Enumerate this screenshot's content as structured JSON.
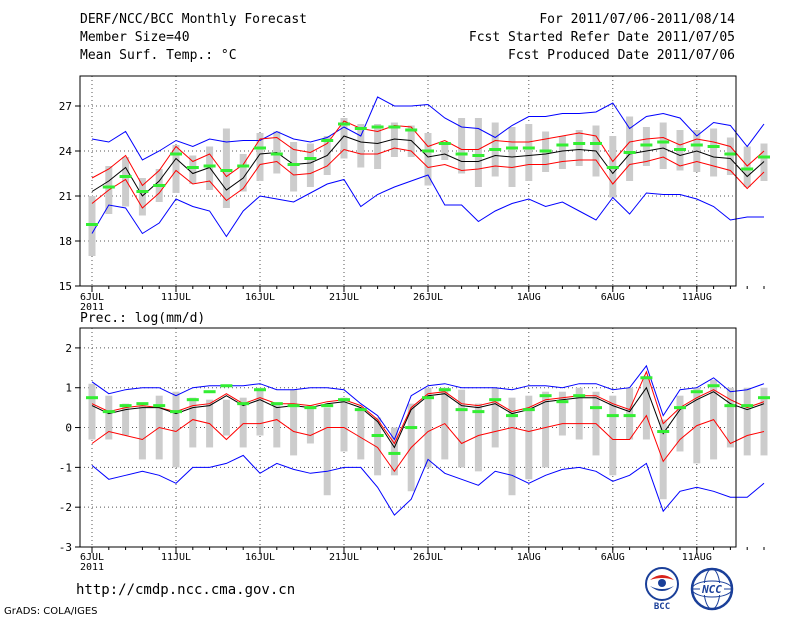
{
  "header": {
    "title": "DERF/NCC/BCC Monthly Forecast",
    "member_size": "Member Size=40",
    "variable": "Mean Surf. Temp.: °C",
    "forecast_range": "For 2011/07/06-2011/08/14",
    "fcst_started": "Fcst Started Refer Date 2011/07/05",
    "fcst_produced": "Fcst Produced Date 2011/07/06"
  },
  "footer": {
    "url": "http://cmdp.ncc.cma.gov.cn",
    "grads": "GrADS: COLA/IGES",
    "logo_bcc": "BCC",
    "logo_ncc": "NCC"
  },
  "colors": {
    "envelope": "#0000ff",
    "stddev": "#ff0000",
    "mean": "#000000",
    "box": "#cccccc",
    "median": "#33ee33",
    "grid": "#555555"
  },
  "chart_data": [
    {
      "type": "line",
      "title": "Mean Surf. Temp.: °C",
      "xlabel": "",
      "ylabel": "",
      "ylim": [
        15,
        29
      ],
      "yticks": [
        15,
        18,
        21,
        24,
        27
      ],
      "grid": "dotted",
      "day_start": 6,
      "xtick_days": [
        0,
        5,
        10,
        15,
        20,
        26,
        31,
        36
      ],
      "xtick_labels": [
        "6JUL",
        "11JUL",
        "16JUL",
        "21JUL",
        "26JUL",
        "1AUG",
        "6AUG",
        "11AUG"
      ],
      "year_label": "2011",
      "series": [
        {
          "name": "max",
          "values": [
            24.8,
            24.6,
            25.3,
            23.4,
            24.0,
            24.7,
            24.3,
            24.8,
            24.6,
            24.7,
            24.7,
            25.3,
            24.8,
            24.6,
            24.9,
            25.6,
            25.0,
            27.6,
            27.0,
            27.0,
            27.1,
            26.2,
            25.6,
            25.5,
            24.9,
            25.7,
            26.3,
            26.3,
            26.5,
            26.5,
            26.6,
            27.2,
            25.5,
            26.3,
            26.5,
            26.2,
            25.0,
            25.9,
            25.7,
            24.3,
            25.8
          ]
        },
        {
          "name": "mean_plus_sd",
          "values": [
            22.2,
            22.8,
            23.7,
            21.7,
            22.7,
            24.3,
            23.3,
            23.8,
            22.3,
            23.1,
            24.8,
            24.9,
            24.1,
            23.9,
            24.5,
            26.0,
            25.5,
            25.3,
            25.7,
            25.6,
            24.3,
            24.7,
            24.1,
            24.1,
            24.7,
            24.6,
            24.6,
            24.8,
            25.0,
            25.2,
            25.0,
            23.3,
            24.6,
            24.8,
            24.9,
            24.4,
            24.8,
            24.6,
            24.3,
            23.0,
            24.0
          ]
        },
        {
          "name": "mean",
          "values": [
            21.3,
            22.0,
            22.9,
            21.0,
            22.0,
            23.5,
            22.5,
            22.9,
            21.4,
            22.2,
            23.8,
            23.9,
            23.1,
            23.2,
            23.7,
            25.0,
            24.6,
            24.5,
            24.8,
            24.7,
            23.6,
            23.8,
            23.3,
            23.3,
            23.7,
            23.6,
            23.7,
            23.8,
            24.0,
            24.1,
            24.0,
            22.5,
            23.8,
            24.0,
            24.2,
            23.7,
            24.0,
            23.6,
            23.5,
            22.3,
            23.3
          ]
        },
        {
          "name": "mean_minus_sd",
          "values": [
            20.5,
            21.4,
            22.1,
            20.2,
            21.2,
            22.7,
            21.8,
            22.0,
            20.7,
            21.5,
            23.1,
            23.3,
            22.4,
            22.5,
            23.0,
            24.1,
            23.8,
            23.8,
            24.2,
            24.0,
            22.9,
            23.1,
            22.7,
            22.8,
            23.0,
            22.9,
            23.1,
            23.1,
            23.3,
            23.4,
            23.4,
            21.8,
            23.1,
            23.3,
            23.6,
            23.0,
            23.3,
            23.0,
            22.7,
            21.5,
            22.6
          ]
        },
        {
          "name": "min",
          "values": [
            18.5,
            20.4,
            20.2,
            18.5,
            19.2,
            20.8,
            20.3,
            20.0,
            18.3,
            20.0,
            21.0,
            20.8,
            20.6,
            21.2,
            21.8,
            22.1,
            20.3,
            21.1,
            21.6,
            22.0,
            22.4,
            20.4,
            20.4,
            19.3,
            20.0,
            20.5,
            20.8,
            20.3,
            20.6,
            20.0,
            19.4,
            20.9,
            19.8,
            21.2,
            21.1,
            21.1,
            20.8,
            20.3,
            19.4,
            19.6,
            19.6
          ]
        },
        {
          "name": "box_upper",
          "values": [
            21.0,
            23.0,
            23.6,
            22.2,
            22.8,
            24.4,
            23.7,
            24.3,
            25.5,
            23.8,
            25.2,
            25.3,
            24.6,
            24.5,
            25.0,
            26.2,
            25.8,
            25.8,
            25.9,
            25.7,
            25.2,
            24.6,
            26.2,
            26.2,
            25.9,
            25.6,
            25.8,
            25.3,
            25.0,
            25.4,
            25.7,
            25.0,
            26.3,
            25.6,
            25.9,
            25.4,
            25.4,
            25.5,
            24.9,
            24.3,
            24.5
          ]
        },
        {
          "name": "box_lower",
          "values": [
            17.0,
            19.8,
            20.3,
            19.7,
            20.6,
            21.2,
            21.8,
            21.4,
            20.2,
            21.3,
            22.0,
            22.5,
            21.3,
            21.6,
            22.4,
            23.5,
            22.9,
            22.8,
            23.6,
            23.6,
            21.7,
            23.4,
            22.5,
            21.6,
            22.3,
            21.6,
            22.0,
            22.6,
            22.8,
            23.0,
            22.3,
            20.9,
            22.0,
            23.0,
            22.8,
            22.7,
            22.6,
            22.3,
            22.4,
            21.6,
            22.0
          ]
        },
        {
          "name": "median",
          "values": [
            19.1,
            21.6,
            22.3,
            21.3,
            21.7,
            23.8,
            22.9,
            23.0,
            22.7,
            23.0,
            24.2,
            23.8,
            23.1,
            23.5,
            24.7,
            25.8,
            25.5,
            25.6,
            25.6,
            25.4,
            24.0,
            24.5,
            23.8,
            23.7,
            24.1,
            24.2,
            24.2,
            24.0,
            24.4,
            24.5,
            24.5,
            22.9,
            23.9,
            24.4,
            24.6,
            24.1,
            24.4,
            24.3,
            23.8,
            22.8,
            23.6
          ]
        }
      ]
    },
    {
      "type": "line",
      "title": "Prec.: log(mm/d)",
      "xlabel": "",
      "ylabel": "",
      "ylim": [
        -3,
        2.5
      ],
      "yticks": [
        -3,
        -2,
        -1,
        0,
        1,
        2
      ],
      "grid": "dotted",
      "day_start": 6,
      "xtick_days": [
        0,
        5,
        10,
        15,
        20,
        26,
        31,
        36
      ],
      "xtick_labels": [
        "6JUL",
        "11JUL",
        "16JUL",
        "21JUL",
        "26JUL",
        "1AUG",
        "6AUG",
        "11AUG"
      ],
      "year_label": "2011",
      "series": [
        {
          "name": "max",
          "values": [
            1.15,
            0.85,
            0.95,
            1.0,
            1.0,
            0.8,
            1.0,
            1.05,
            1.05,
            1.05,
            1.1,
            0.95,
            0.95,
            1.0,
            1.0,
            0.95,
            0.6,
            0.3,
            -0.3,
            0.8,
            1.05,
            1.1,
            1.0,
            1.0,
            1.0,
            0.95,
            1.05,
            1.05,
            1.0,
            1.1,
            1.1,
            0.95,
            1.0,
            1.55,
            0.3,
            0.95,
            1.0,
            1.25,
            0.9,
            0.95,
            1.1
          ]
        },
        {
          "name": "mean_plus_sd",
          "values": [
            0.6,
            0.4,
            0.5,
            0.55,
            0.5,
            0.4,
            0.55,
            0.6,
            0.85,
            0.6,
            0.75,
            0.6,
            0.6,
            0.55,
            0.65,
            0.7,
            0.55,
            0.2,
            -0.4,
            0.5,
            0.85,
            0.9,
            0.6,
            0.55,
            0.65,
            0.4,
            0.5,
            0.7,
            0.75,
            0.8,
            0.8,
            0.6,
            0.45,
            1.4,
            0.1,
            0.5,
            0.75,
            0.95,
            0.7,
            0.5,
            0.65
          ]
        },
        {
          "name": "mean",
          "values": [
            0.55,
            0.35,
            0.45,
            0.5,
            0.5,
            0.35,
            0.5,
            0.55,
            0.8,
            0.55,
            0.7,
            0.5,
            0.55,
            0.5,
            0.6,
            0.65,
            0.5,
            0.15,
            -0.5,
            0.45,
            0.8,
            0.85,
            0.55,
            0.5,
            0.6,
            0.35,
            0.45,
            0.65,
            0.7,
            0.75,
            0.75,
            0.55,
            0.4,
            1.0,
            -0.15,
            0.45,
            0.7,
            0.9,
            0.6,
            0.45,
            0.6
          ]
        },
        {
          "name": "mean_minus_sd",
          "values": [
            -0.4,
            -0.1,
            -0.2,
            -0.3,
            0.0,
            -0.1,
            0.2,
            0.1,
            -0.3,
            0.1,
            0.1,
            0.2,
            -0.1,
            -0.2,
            0.0,
            0.0,
            -0.25,
            -0.5,
            -1.1,
            -0.5,
            -0.1,
            0.1,
            -0.4,
            -0.2,
            -0.1,
            0.0,
            -0.1,
            0.0,
            0.1,
            0.1,
            0.1,
            -0.3,
            -0.3,
            0.3,
            -0.85,
            -0.3,
            0.05,
            0.2,
            -0.4,
            -0.2,
            -0.1
          ]
        },
        {
          "name": "min",
          "values": [
            -0.95,
            -1.3,
            -1.2,
            -1.1,
            -1.2,
            -1.4,
            -1.0,
            -1.0,
            -0.9,
            -0.7,
            -1.15,
            -0.9,
            -1.05,
            -1.15,
            -1.1,
            -1.0,
            -1.0,
            -1.5,
            -2.2,
            -1.8,
            -0.8,
            -1.15,
            -1.3,
            -1.45,
            -1.1,
            -1.2,
            -1.4,
            -1.2,
            -1.05,
            -1.0,
            -1.1,
            -1.35,
            -1.2,
            -0.9,
            -2.1,
            -1.6,
            -1.5,
            -1.6,
            -1.75,
            -1.75,
            -1.4
          ]
        },
        {
          "name": "box_upper",
          "values": [
            1.1,
            0.8,
            0.6,
            0.55,
            0.8,
            0.9,
            0.75,
            0.7,
            0.7,
            0.75,
            1.0,
            0.6,
            0.95,
            0.55,
            0.5,
            0.75,
            0.5,
            0.25,
            0.0,
            0.6,
            1.0,
            1.0,
            0.95,
            0.6,
            1.0,
            0.75,
            0.8,
            0.9,
            0.9,
            1.0,
            0.9,
            0.8,
            1.0,
            1.3,
            0.2,
            0.8,
            1.0,
            1.2,
            1.0,
            1.0,
            1.0
          ]
        },
        {
          "name": "box_lower",
          "values": [
            -0.3,
            -0.3,
            -0.2,
            -0.8,
            -0.8,
            -1.0,
            -0.5,
            -0.5,
            -0.2,
            -0.5,
            -0.2,
            -0.5,
            -0.7,
            -0.4,
            -1.7,
            -0.6,
            -0.8,
            -1.2,
            -1.2,
            -1.6,
            -1.0,
            -0.8,
            -1.0,
            -1.1,
            -0.5,
            -1.7,
            -1.3,
            -1.0,
            -0.2,
            -0.3,
            -0.7,
            -1.2,
            -0.3,
            -0.3,
            -1.8,
            -0.6,
            -0.9,
            -0.8,
            -0.5,
            -0.7,
            -0.7
          ]
        },
        {
          "name": "median",
          "values": [
            0.75,
            0.4,
            0.55,
            0.6,
            0.55,
            0.4,
            0.7,
            0.9,
            1.05,
            0.6,
            0.95,
            0.6,
            0.55,
            0.5,
            0.55,
            0.7,
            0.45,
            -0.2,
            -0.65,
            0.0,
            0.75,
            0.95,
            0.45,
            0.4,
            0.7,
            0.3,
            0.45,
            0.8,
            0.65,
            0.8,
            0.5,
            0.3,
            0.3,
            1.25,
            -0.1,
            0.5,
            0.9,
            1.05,
            0.55,
            0.55,
            0.75
          ]
        }
      ]
    }
  ]
}
